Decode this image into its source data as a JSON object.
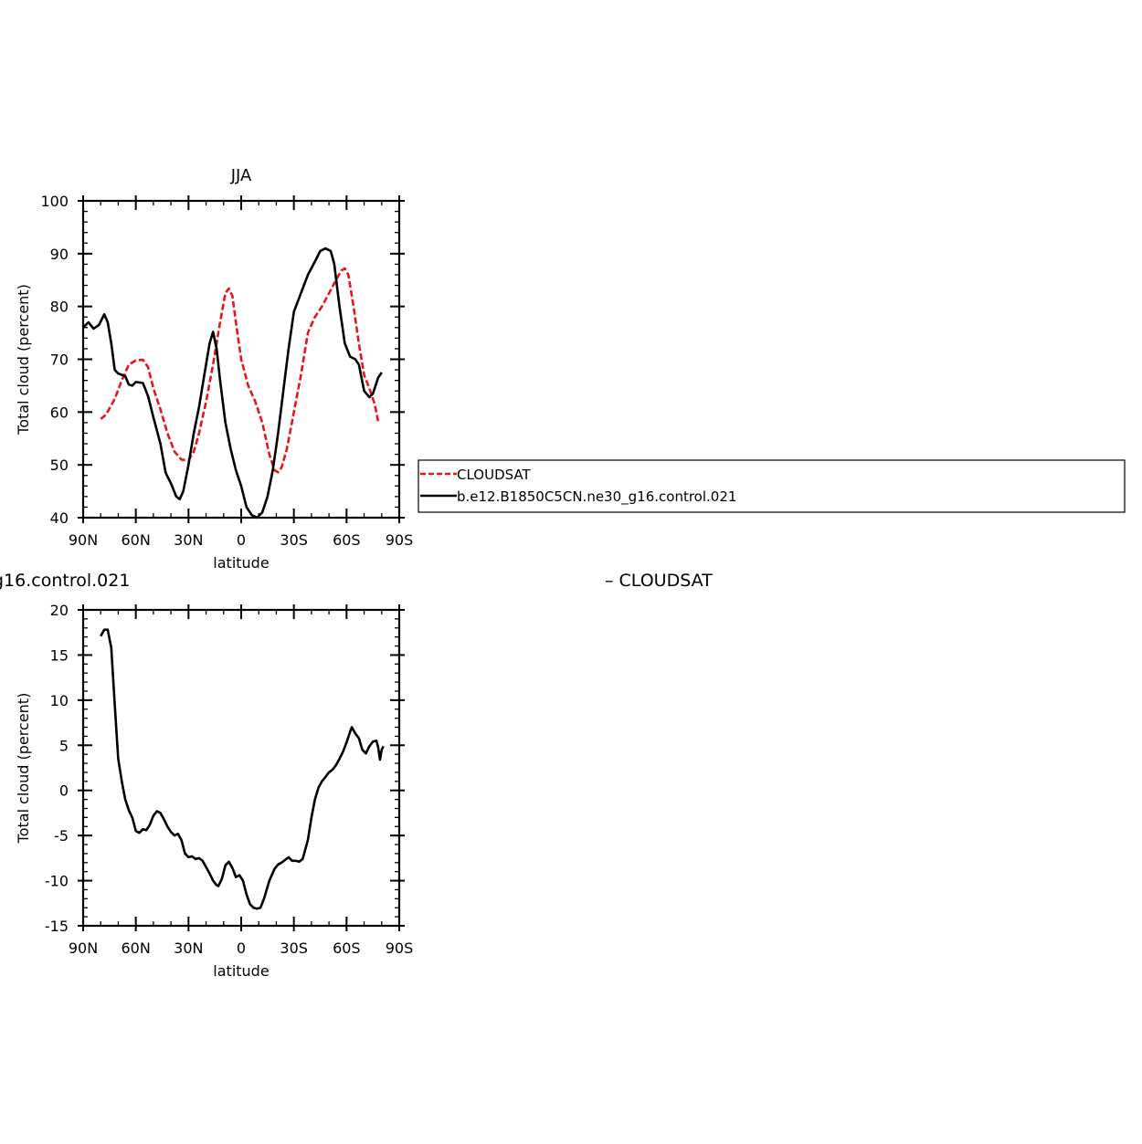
{
  "legend": {
    "items": [
      {
        "label": "CLOUDSAT",
        "color": "#e8141a",
        "dash": true
      },
      {
        "label": "b.e12.B1850C5CN.ne30_g16.control.021",
        "color": "#000000",
        "dash": false
      }
    ]
  },
  "bottom_title_left": "g16.control.021",
  "bottom_title_right": "– CLOUDSAT",
  "chart_data": [
    {
      "type": "line",
      "title": "JJA",
      "xlabel": "latitude",
      "ylabel": "Total cloud (percent)",
      "xlim": [
        90,
        -90
      ],
      "ylim": [
        40,
        100
      ],
      "x_ticks": [
        90,
        60,
        30,
        0,
        -30,
        -60,
        -90
      ],
      "x_tick_labels": [
        "90N",
        "60N",
        "30N",
        "0",
        "30S",
        "60S",
        "90S"
      ],
      "y_ticks": [
        40,
        50,
        60,
        70,
        80,
        90,
        100
      ],
      "series": [
        {
          "name": "CLOUDSAT",
          "color": "#e8141a",
          "dash": true,
          "points": [
            [
              80,
              58.7
            ],
            [
              77,
              59.5
            ],
            [
              72,
              62.5
            ],
            [
              68,
              66
            ],
            [
              64,
              69
            ],
            [
              60,
              69.8
            ],
            [
              56,
              69.9
            ],
            [
              53,
              68.5
            ],
            [
              50,
              64.5
            ],
            [
              46,
              60.5
            ],
            [
              42,
              56
            ],
            [
              38,
              52.5
            ],
            [
              34,
              51
            ],
            [
              30,
              50.9
            ],
            [
              27,
              52.5
            ],
            [
              24,
              56
            ],
            [
              20,
              62
            ],
            [
              16,
              69
            ],
            [
              12,
              77
            ],
            [
              9,
              82.5
            ],
            [
              7,
              83.4
            ],
            [
              5,
              82
            ],
            [
              3,
              77
            ],
            [
              0,
              70
            ],
            [
              -4,
              65
            ],
            [
              -8,
              62
            ],
            [
              -12,
              58
            ],
            [
              -16,
              52
            ],
            [
              -19,
              49
            ],
            [
              -21,
              48.6
            ],
            [
              -23,
              49.5
            ],
            [
              -26,
              53
            ],
            [
              -30,
              60
            ],
            [
              -34,
              67
            ],
            [
              -38,
              75
            ],
            [
              -42,
              78
            ],
            [
              -46,
              80
            ],
            [
              -50,
              82.5
            ],
            [
              -54,
              85
            ],
            [
              -57,
              86.8
            ],
            [
              -59,
              87.2
            ],
            [
              -61,
              86
            ],
            [
              -64,
              80
            ],
            [
              -67,
              73
            ],
            [
              -70,
              67
            ],
            [
              -73,
              64.5
            ],
            [
              -76,
              61.5
            ],
            [
              -78,
              58.3
            ]
          ]
        },
        {
          "name": "b.e12.B1850C5CN.ne30_g16.control.021",
          "color": "#000000",
          "dash": false,
          "points": [
            [
              90,
              76
            ],
            [
              87,
              77
            ],
            [
              84,
              75.8
            ],
            [
              81,
              76.5
            ],
            [
              78,
              78.5
            ],
            [
              76,
              77
            ],
            [
              74,
              73
            ],
            [
              72,
              68
            ],
            [
              70,
              67.3
            ],
            [
              66,
              66.8
            ],
            [
              64,
              65.2
            ],
            [
              62,
              65
            ],
            [
              60,
              65.7
            ],
            [
              56,
              65.5
            ],
            [
              53,
              63
            ],
            [
              50,
              59
            ],
            [
              46,
              54
            ],
            [
              43,
              48.5
            ],
            [
              40,
              46.5
            ],
            [
              37,
              44
            ],
            [
              35,
              43.5
            ],
            [
              33,
              45
            ],
            [
              30,
              50
            ],
            [
              27,
              56
            ],
            [
              24,
              61
            ],
            [
              21,
              67
            ],
            [
              18,
              73
            ],
            [
              16,
              75.2
            ],
            [
              14,
              72
            ],
            [
              12,
              66
            ],
            [
              9,
              58
            ],
            [
              6,
              53
            ],
            [
              3,
              49
            ],
            [
              0,
              46
            ],
            [
              -3,
              42
            ],
            [
              -6,
              40.5
            ],
            [
              -9,
              40
            ],
            [
              -12,
              41
            ],
            [
              -15,
              44
            ],
            [
              -18,
              49
            ],
            [
              -21,
              56
            ],
            [
              -24,
              64
            ],
            [
              -27,
              72
            ],
            [
              -30,
              79
            ],
            [
              -34,
              82.5
            ],
            [
              -38,
              86
            ],
            [
              -42,
              88.5
            ],
            [
              -45,
              90.5
            ],
            [
              -48,
              91
            ],
            [
              -51,
              90.5
            ],
            [
              -53,
              88
            ],
            [
              -56,
              80
            ],
            [
              -59,
              73
            ],
            [
              -62,
              70.5
            ],
            [
              -65,
              70
            ],
            [
              -67,
              69
            ],
            [
              -70,
              64
            ],
            [
              -73,
              62.8
            ],
            [
              -75,
              63.5
            ],
            [
              -78,
              66.5
            ],
            [
              -80,
              67.5
            ]
          ]
        }
      ]
    },
    {
      "type": "line",
      "title": "",
      "xlabel": "latitude",
      "ylabel": "Total cloud (percent)",
      "xlim": [
        90,
        -90
      ],
      "ylim": [
        -15,
        20
      ],
      "x_ticks": [
        90,
        60,
        30,
        0,
        -30,
        -60,
        -90
      ],
      "x_tick_labels": [
        "90N",
        "60N",
        "30N",
        "0",
        "30S",
        "60S",
        "90S"
      ],
      "y_ticks": [
        -15,
        -10,
        -5,
        0,
        5,
        10,
        15,
        20
      ],
      "series": [
        {
          "name": "",
          "color": "#000000",
          "dash": false,
          "points": [
            [
              80,
              17.1
            ],
            [
              78,
              17.8
            ],
            [
              76,
              17.8
            ],
            [
              74,
              15.8
            ],
            [
              72,
              9.5
            ],
            [
              70,
              3.5
            ],
            [
              68,
              1
            ],
            [
              66,
              -1
            ],
            [
              64,
              -2.2
            ],
            [
              62,
              -3
            ],
            [
              60,
              -4.5
            ],
            [
              58,
              -4.7
            ],
            [
              56,
              -4.3
            ],
            [
              54,
              -4.4
            ],
            [
              52,
              -3.8
            ],
            [
              50,
              -2.8
            ],
            [
              48,
              -2.3
            ],
            [
              46,
              -2.5
            ],
            [
              44,
              -3.2
            ],
            [
              42,
              -4
            ],
            [
              40,
              -4.6
            ],
            [
              38,
              -5
            ],
            [
              36,
              -4.8
            ],
            [
              34,
              -5.5
            ],
            [
              32,
              -7
            ],
            [
              30,
              -7.4
            ],
            [
              28,
              -7.3
            ],
            [
              26,
              -7.6
            ],
            [
              24,
              -7.5
            ],
            [
              22,
              -7.8
            ],
            [
              20,
              -8.5
            ],
            [
              18,
              -9.2
            ],
            [
              16,
              -10
            ],
            [
              14,
              -10.5
            ],
            [
              13,
              -10.6
            ],
            [
              11,
              -9.8
            ],
            [
              9,
              -8.3
            ],
            [
              7,
              -7.9
            ],
            [
              5,
              -8.6
            ],
            [
              3,
              -9.6
            ],
            [
              1,
              -9.4
            ],
            [
              -1,
              -10
            ],
            [
              -3,
              -11.5
            ],
            [
              -5,
              -12.6
            ],
            [
              -7,
              -13
            ],
            [
              -9,
              -13.1
            ],
            [
              -11,
              -13
            ],
            [
              -13,
              -12
            ],
            [
              -16,
              -10
            ],
            [
              -19,
              -8.7
            ],
            [
              -21,
              -8.2
            ],
            [
              -23,
              -8
            ],
            [
              -25,
              -7.7
            ],
            [
              -27,
              -7.4
            ],
            [
              -29,
              -7.8
            ],
            [
              -31,
              -7.8
            ],
            [
              -33,
              -7.9
            ],
            [
              -35,
              -7.6
            ],
            [
              -38,
              -5.5
            ],
            [
              -40,
              -3
            ],
            [
              -42,
              -1
            ],
            [
              -44,
              0.3
            ],
            [
              -46,
              1
            ],
            [
              -48,
              1.5
            ],
            [
              -50,
              2
            ],
            [
              -52,
              2.3
            ],
            [
              -54,
              2.8
            ],
            [
              -56,
              3.5
            ],
            [
              -58,
              4.3
            ],
            [
              -60,
              5.3
            ],
            [
              -62,
              6.5
            ],
            [
              -63,
              7
            ],
            [
              -65,
              6.3
            ],
            [
              -67,
              5.8
            ],
            [
              -69,
              4.5
            ],
            [
              -71,
              4.1
            ],
            [
              -73,
              4.9
            ],
            [
              -75,
              5.4
            ],
            [
              -77,
              5.5
            ],
            [
              -78,
              4.8
            ],
            [
              -79,
              3.4
            ],
            [
              -80,
              4.5
            ],
            [
              -81,
              4.9
            ]
          ]
        }
      ]
    }
  ]
}
